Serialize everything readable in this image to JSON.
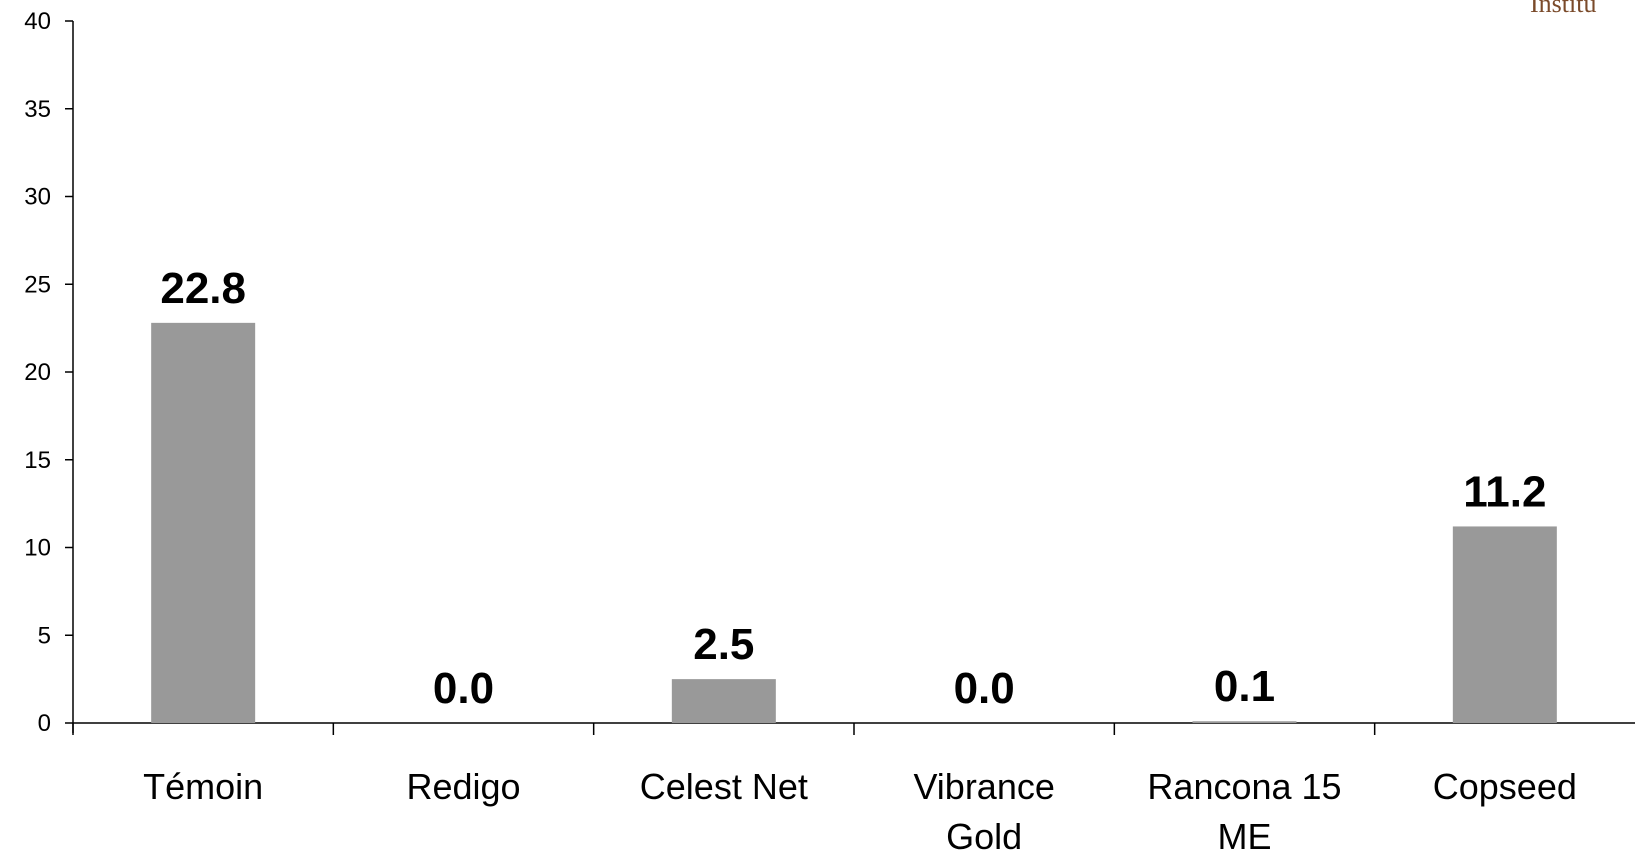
{
  "chart_data": {
    "type": "bar",
    "categories": [
      [
        "Témoin"
      ],
      [
        "Redigo"
      ],
      [
        "Celest Net"
      ],
      [
        "Vibrance",
        "Gold"
      ],
      [
        "Rancona 15",
        "ME"
      ],
      [
        "Copseed"
      ]
    ],
    "values": [
      22.8,
      0.0,
      2.5,
      0.0,
      0.1,
      11.2
    ],
    "data_labels": [
      "22.8",
      "0.0",
      "2.5",
      "0.0",
      "0.1",
      "11.2"
    ],
    "ylim": [
      0,
      40
    ],
    "yticks": [
      "0",
      "5",
      "10",
      "15",
      "20",
      "25",
      "30",
      "35",
      "40"
    ],
    "bar_color": "#999999",
    "grid": false,
    "legend": "none"
  },
  "logo": {
    "text": "Institu"
  }
}
